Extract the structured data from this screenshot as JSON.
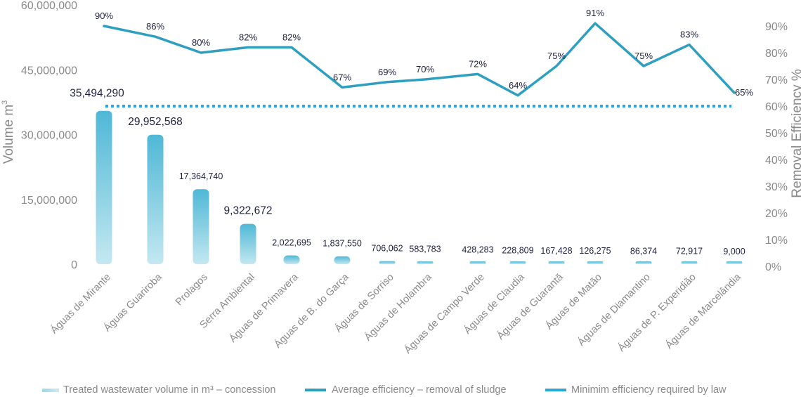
{
  "chart_data": {
    "type": "bar",
    "categories": [
      "Águas de Mirante",
      "Águas Guariroba",
      "Prolagos",
      "Serra Ambiental",
      "Águas de Primavera",
      "Águas de B. do Garça",
      "Águas de Sorriso",
      "Águas de Holambra",
      "Águas de Campo Verde",
      "Águas de Claudia",
      "Águas de Guarantã",
      "Águas de Matão",
      "Águas de Diamantino",
      "Águas de P. Experidião",
      "Águas de Marcelândia"
    ],
    "series": [
      {
        "name": "Treated wastewater volume in m³ – concession",
        "type": "bar",
        "axis": "left",
        "values": [
          35494290,
          29952568,
          17364740,
          9322672,
          2022695,
          1837550,
          706062,
          583783,
          428283,
          228809,
          167428,
          126275,
          86374,
          72917,
          9000
        ],
        "labels": [
          "35,494,290",
          "29,952,568",
          "17,364,740",
          "9,322,672",
          "2,022,695",
          "1,837,550",
          "706,062",
          "583,783",
          "428,283",
          "228,809",
          "167,428",
          "126,275",
          "86,374",
          "72,917",
          "9,000"
        ],
        "color": "#5cc3db"
      },
      {
        "name": "Average efficiency – removal of sludge",
        "type": "line",
        "axis": "right",
        "values": [
          90,
          86,
          80,
          82,
          82,
          67,
          69,
          70,
          72,
          64,
          75,
          91,
          75,
          83,
          65
        ],
        "labels": [
          "90%",
          "86%",
          "80%",
          "82%",
          "82%",
          "67%",
          "69%",
          "70%",
          "72%",
          "64%",
          "75%",
          "91%",
          "75%",
          "83%",
          "65%"
        ],
        "color": "#2f9fc0"
      },
      {
        "name": "Minimim efficiency required by law",
        "type": "line-dotted",
        "axis": "right",
        "value": 60,
        "color": "#2aa8d8"
      }
    ],
    "y_left": {
      "label_main": "Volume m",
      "label_sup": "3",
      "ylim": [
        0,
        60000000
      ],
      "ticks": [
        "0",
        "15,000,000",
        "30,000,000",
        "45,000,000",
        "60,000,000"
      ],
      "tick_values": [
        0,
        15000000,
        30000000,
        45000000,
        60000000
      ]
    },
    "y_right": {
      "label": "Removal Efficiency %",
      "ylim": [
        0,
        100
      ],
      "ticks": [
        "0%",
        "10%",
        "20%",
        "30%",
        "40%",
        "50%",
        "60%",
        "70%",
        "80%",
        "90%"
      ],
      "tick_values": [
        0,
        10,
        20,
        30,
        40,
        50,
        60,
        70,
        80,
        90
      ]
    },
    "grid": false,
    "legend_position": "bottom"
  },
  "legend": [
    {
      "text": "Treated wastewater volume in m³ – concession"
    },
    {
      "text": "Average efficiency – removal of sludge"
    },
    {
      "text": "Minimim efficiency required by law"
    }
  ]
}
